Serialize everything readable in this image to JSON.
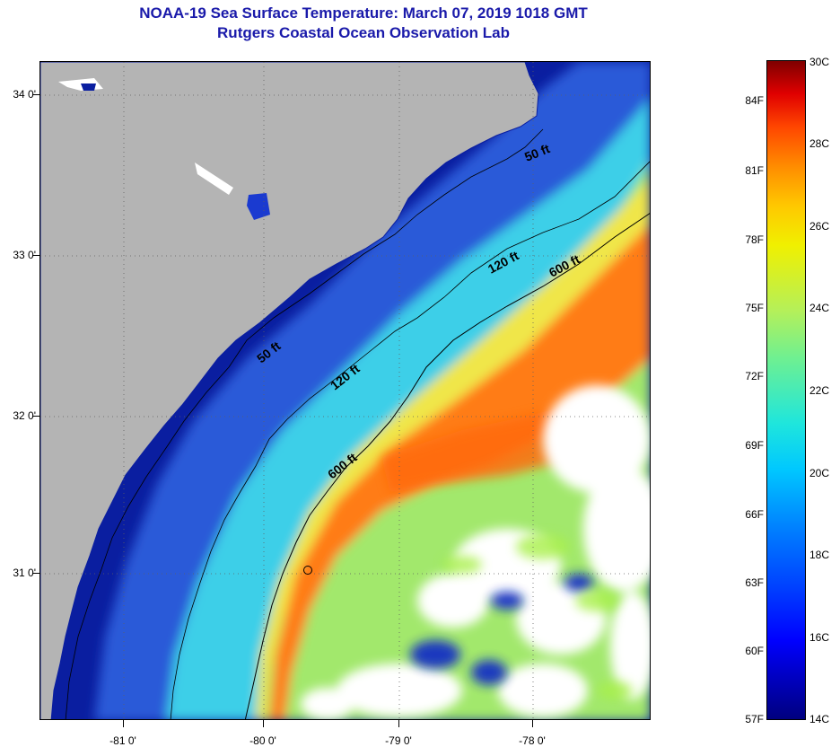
{
  "title_line1": "NOAA-19 Sea Surface Temperature:  March 07, 2019 1018 GMT",
  "title_line2": "Rutgers Coastal Ocean Observation Lab",
  "lat_labels": [
    "34 0'",
    "33 0'",
    "32 0'",
    "31 0'"
  ],
  "lon_labels": [
    "-81 0'",
    "-80 0'",
    "-79 0'",
    "-78 0'"
  ],
  "contour_labels": {
    "c50_upper": "50 ft",
    "c50_lower": "50 ft",
    "c120_upper": "120 ft",
    "c120_lower": "120 ft",
    "c600_upper": "600 ft",
    "c600_lower": "600 ft"
  },
  "colorbar": {
    "fahrenheit": [
      "84F",
      "81F",
      "78F",
      "75F",
      "72F",
      "69F",
      "66F",
      "63F",
      "60F",
      "57F"
    ],
    "celsius": [
      "30C",
      "28C",
      "26C",
      "24C",
      "22C",
      "20C",
      "18C",
      "16C",
      "14C"
    ],
    "range_c": [
      14,
      30
    ],
    "stops": [
      "#00007f",
      "#0000ff",
      "#0080ff",
      "#00c8ff",
      "#70f090",
      "#f0f000",
      "#ff8c00",
      "#e00000",
      "#7f0000"
    ]
  },
  "colors": {
    "land": "#b4b4b4",
    "nearshore": "#0a1ea0",
    "shelf": "#3c78e6",
    "mid_shelf": "#4ed2e6",
    "outer_shelf": "#96e678",
    "gulf_stream": "#ff7814",
    "cloud": "#ffffff",
    "title": "#1a1aaa"
  }
}
